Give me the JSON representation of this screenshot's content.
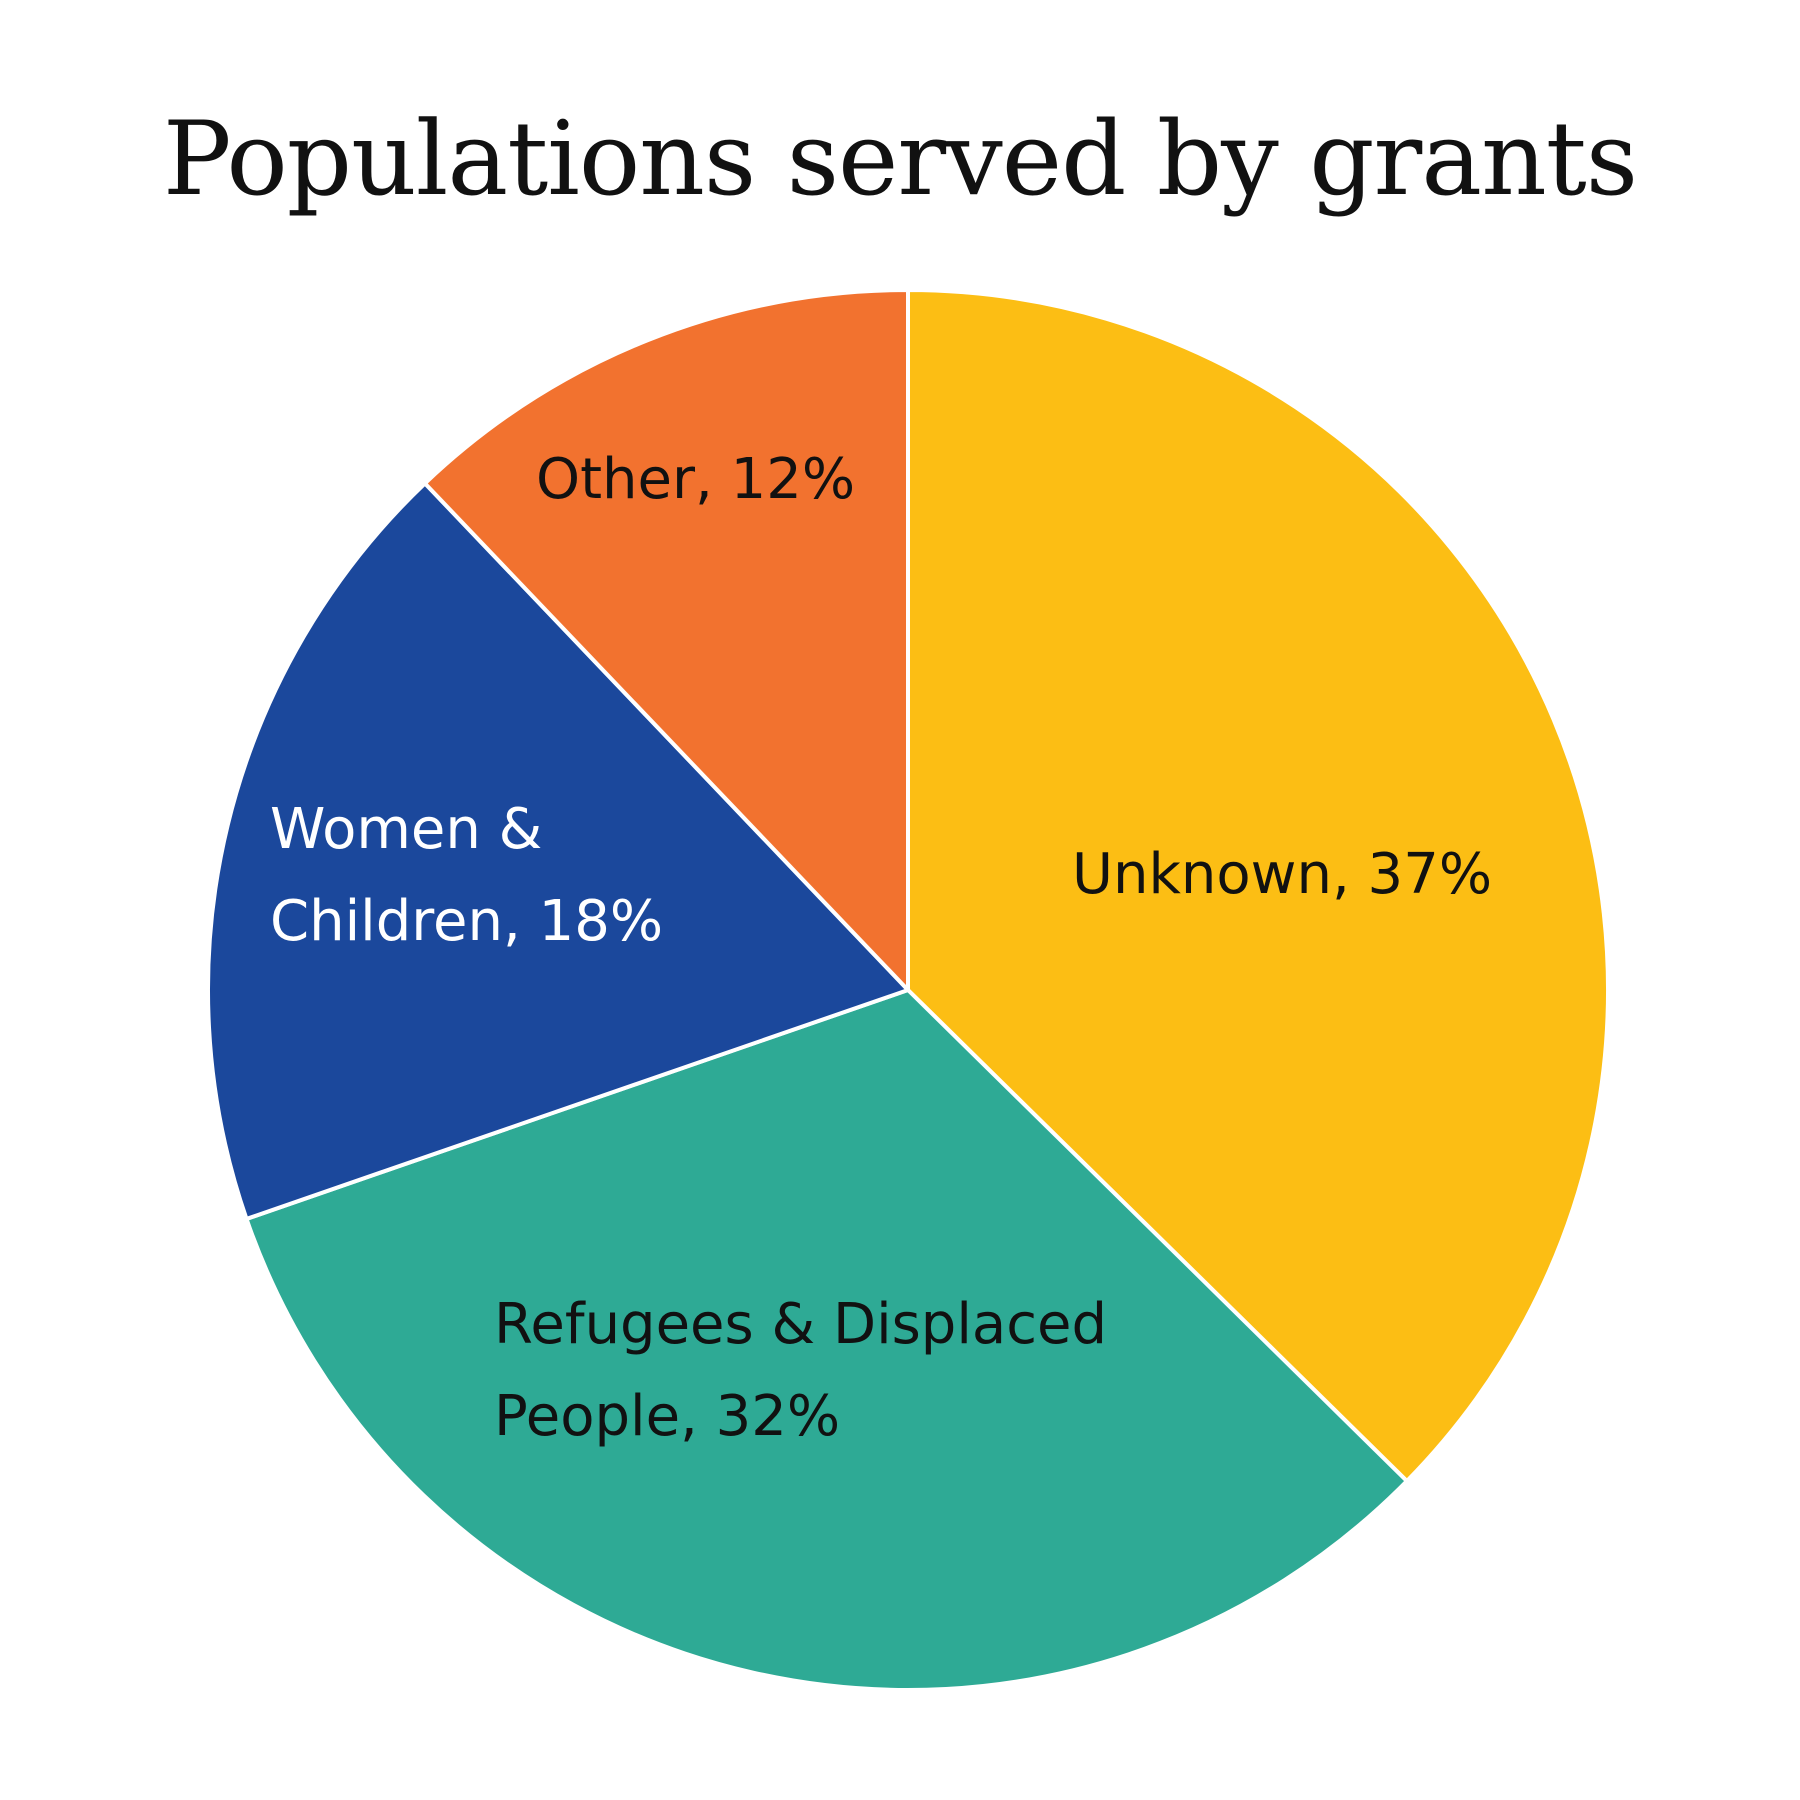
{
  "chart_data": {
    "type": "pie",
    "title": "Populations served by grants",
    "slices": [
      {
        "label": "Unknown",
        "value": 37,
        "label_lines": [
          "Unknown, 37%"
        ],
        "color": "#FCBE14",
        "text_color": "#111111"
      },
      {
        "label": "Refugees & Displaced People",
        "value": 32,
        "label_lines": [
          "Refugees & Displaced",
          "People, 32%"
        ],
        "color": "#2EAA95",
        "text_color": "#111111"
      },
      {
        "label": "Women & Children",
        "value": 18,
        "label_lines": [
          "Women &",
          "Children, 18%"
        ],
        "color": "#1B489C",
        "text_color": "#ffffff"
      },
      {
        "label": "Other",
        "value": 12,
        "label_lines": [
          "Other, 12%"
        ],
        "color": "#F2722F",
        "text_color": "#111111"
      }
    ],
    "start": "top",
    "direction": "clockwise"
  }
}
